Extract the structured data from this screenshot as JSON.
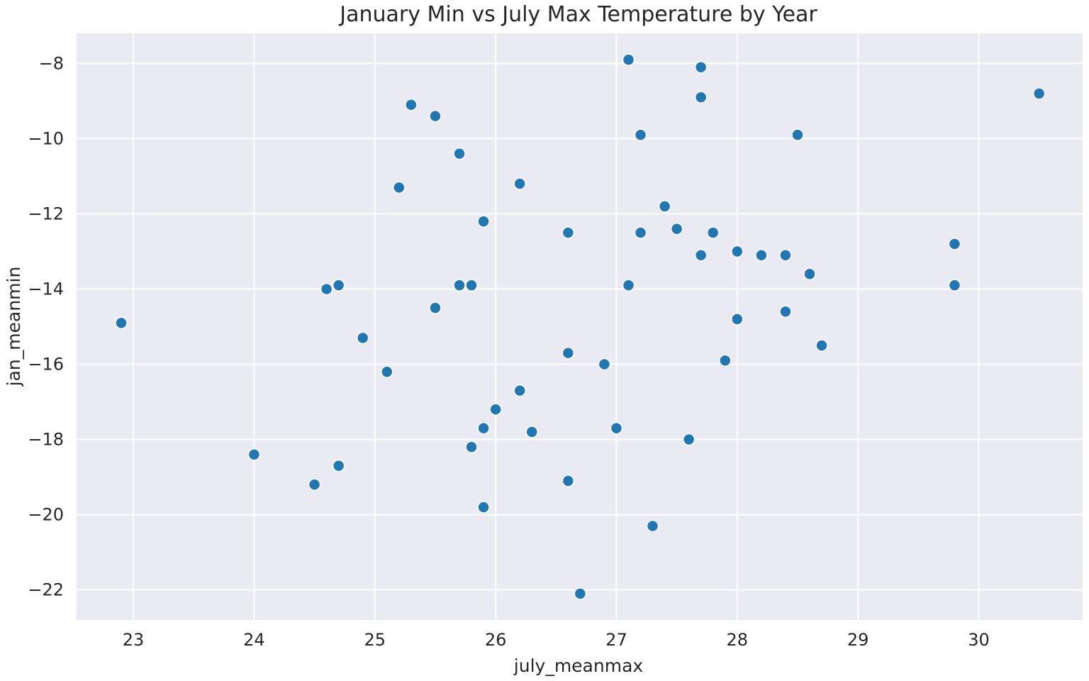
{
  "chart_data": {
    "type": "scatter",
    "title": "January Min vs July Max Temperature by Year",
    "xlabel": "july_meanmax",
    "ylabel": "jan_meanmin",
    "xlim": [
      22.53,
      30.86
    ],
    "ylim": [
      -22.8,
      -7.2
    ],
    "xticks": [
      23,
      24,
      25,
      26,
      27,
      28,
      29,
      30
    ],
    "yticks": [
      -8,
      -10,
      -12,
      -14,
      -16,
      -18,
      -20,
      -22
    ],
    "ytick_labels": [
      "−8",
      "−10",
      "−12",
      "−14",
      "−16",
      "−18",
      "−20",
      "−22"
    ],
    "grid": true,
    "colors": {
      "background": "#EAEAF2",
      "grid": "#FFFFFF",
      "point": "#1F77B4",
      "point_edge": "#FFFFFF"
    },
    "points": [
      [
        22.9,
        -14.9
      ],
      [
        24.0,
        -18.4
      ],
      [
        24.5,
        -19.2
      ],
      [
        24.6,
        -14.0
      ],
      [
        24.7,
        -18.7
      ],
      [
        24.7,
        -13.9
      ],
      [
        24.9,
        -15.3
      ],
      [
        25.1,
        -16.2
      ],
      [
        25.2,
        -11.3
      ],
      [
        25.3,
        -9.1
      ],
      [
        25.5,
        -9.4
      ],
      [
        25.5,
        -14.5
      ],
      [
        25.7,
        -10.4
      ],
      [
        25.7,
        -13.9
      ],
      [
        25.8,
        -13.9
      ],
      [
        25.8,
        -18.2
      ],
      [
        25.9,
        -17.7
      ],
      [
        25.9,
        -12.2
      ],
      [
        25.9,
        -19.8
      ],
      [
        26.0,
        -17.2
      ],
      [
        26.2,
        -16.7
      ],
      [
        26.2,
        -11.2
      ],
      [
        26.3,
        -17.8
      ],
      [
        26.6,
        -12.5
      ],
      [
        26.6,
        -15.7
      ],
      [
        26.6,
        -19.1
      ],
      [
        26.7,
        -22.1
      ],
      [
        26.9,
        -16.0
      ],
      [
        27.0,
        -17.7
      ],
      [
        27.1,
        -7.9
      ],
      [
        27.1,
        -13.9
      ],
      [
        27.1,
        -7.9
      ],
      [
        27.2,
        -12.5
      ],
      [
        27.2,
        -9.9
      ],
      [
        27.3,
        -20.3
      ],
      [
        27.4,
        -11.8
      ],
      [
        27.5,
        -12.4
      ],
      [
        27.6,
        -18.0
      ],
      [
        27.7,
        -8.1
      ],
      [
        27.7,
        -13.1
      ],
      [
        27.7,
        -8.9
      ],
      [
        27.8,
        -12.5
      ],
      [
        27.9,
        -15.9
      ],
      [
        28.0,
        -13.0
      ],
      [
        28.0,
        -14.8
      ],
      [
        28.2,
        -13.1
      ],
      [
        28.4,
        -13.1
      ],
      [
        28.4,
        -14.6
      ],
      [
        28.5,
        -9.9
      ],
      [
        28.6,
        -13.6
      ],
      [
        28.7,
        -15.5
      ],
      [
        29.8,
        -13.9
      ],
      [
        29.8,
        -12.8
      ],
      [
        30.5,
        -8.8
      ]
    ]
  }
}
